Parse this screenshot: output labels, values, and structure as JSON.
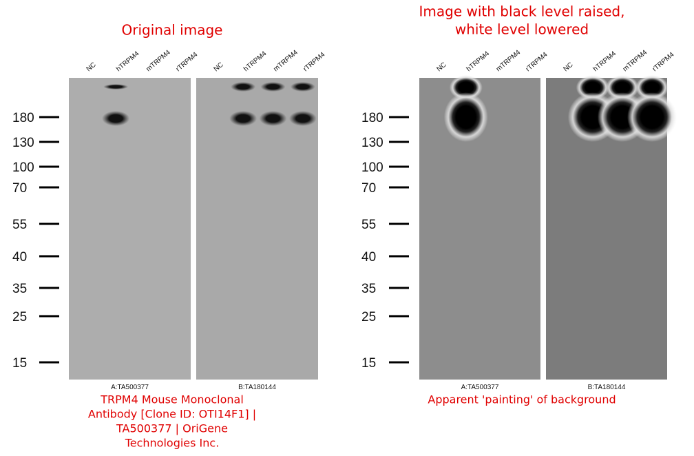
{
  "panels": [
    {
      "title_lines": [
        "Original image"
      ],
      "blots": [
        {
          "lanes": [
            "NC",
            "hTRPM4",
            "mTRPM4",
            "rTRPM4"
          ],
          "label": "A:TA500377"
        },
        {
          "lanes": [
            "NC",
            "hTRPM4",
            "mTRPM4",
            "rTRPM4"
          ],
          "label": "B:TA180144"
        }
      ],
      "markers": [
        "180",
        "130",
        "100",
        "70",
        "55",
        "40",
        "35",
        "25",
        "15"
      ],
      "caption_lines": [
        "TRPM4 Mouse Monoclonal",
        "Antibody [Clone ID: OTI14F1] |",
        "TA500377 | OriGene",
        "Technologies Inc."
      ]
    },
    {
      "title_lines": [
        "Image with black level raised,",
        "white level lowered"
      ],
      "blots": [
        {
          "lanes": [
            "NC",
            "hTRPM4",
            "mTRPM4",
            "rTRPM4"
          ],
          "label": "A:TA500377"
        },
        {
          "lanes": [
            "NC",
            "hTRPM4",
            "mTRPM4",
            "rTRPM4"
          ],
          "label": "B:TA180144"
        }
      ],
      "markers": [
        "180",
        "130",
        "100",
        "70",
        "55",
        "40",
        "35",
        "25",
        "15"
      ],
      "caption_lines": [
        "Apparent 'painting' of background"
      ]
    }
  ]
}
